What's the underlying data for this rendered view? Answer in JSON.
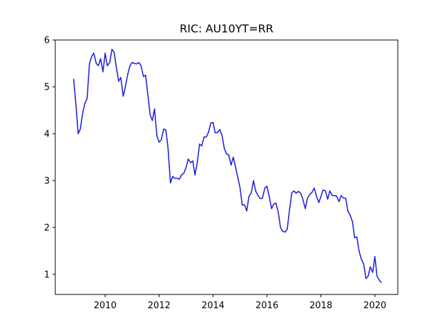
{
  "chart_data": {
    "type": "line",
    "title": "RIC: AU10YT=RR",
    "xlabel": "",
    "ylabel": "",
    "xlim": [
      2008.15,
      2020.85
    ],
    "ylim": [
      0.57,
      6.0
    ],
    "grid": false,
    "legend": "none",
    "x_ticks": [
      2010,
      2012,
      2014,
      2016,
      2018,
      2020
    ],
    "x_tick_labels": [
      "2010",
      "2012",
      "2014",
      "2016",
      "2018",
      "2020"
    ],
    "y_ticks": [
      1,
      2,
      3,
      4,
      5,
      6
    ],
    "y_tick_labels": [
      "1",
      "2",
      "3",
      "4",
      "5",
      "6"
    ],
    "series": [
      {
        "color": "#2222dd",
        "x": [
          2008.83,
          2008.92,
          2009.0,
          2009.08,
          2009.17,
          2009.25,
          2009.33,
          2009.42,
          2009.5,
          2009.58,
          2009.67,
          2009.75,
          2009.83,
          2009.92,
          2010.0,
          2010.08,
          2010.17,
          2010.25,
          2010.33,
          2010.42,
          2010.5,
          2010.58,
          2010.67,
          2010.75,
          2010.83,
          2010.92,
          2011.0,
          2011.08,
          2011.17,
          2011.25,
          2011.33,
          2011.42,
          2011.5,
          2011.58,
          2011.67,
          2011.75,
          2011.83,
          2011.92,
          2012.0,
          2012.08,
          2012.17,
          2012.25,
          2012.33,
          2012.42,
          2012.5,
          2012.58,
          2012.67,
          2012.75,
          2012.83,
          2012.92,
          2013.0,
          2013.08,
          2013.17,
          2013.25,
          2013.33,
          2013.42,
          2013.5,
          2013.58,
          2013.67,
          2013.75,
          2013.83,
          2013.92,
          2014.0,
          2014.08,
          2014.17,
          2014.25,
          2014.33,
          2014.42,
          2014.5,
          2014.58,
          2014.67,
          2014.75,
          2014.83,
          2014.92,
          2015.0,
          2015.08,
          2015.17,
          2015.25,
          2015.33,
          2015.42,
          2015.5,
          2015.58,
          2015.67,
          2015.75,
          2015.83,
          2015.92,
          2016.0,
          2016.08,
          2016.17,
          2016.25,
          2016.33,
          2016.42,
          2016.5,
          2016.58,
          2016.67,
          2016.75,
          2016.83,
          2016.92,
          2017.0,
          2017.08,
          2017.17,
          2017.25,
          2017.33,
          2017.42,
          2017.5,
          2017.58,
          2017.67,
          2017.75,
          2017.83,
          2017.92,
          2018.0,
          2018.08,
          2018.17,
          2018.25,
          2018.33,
          2018.42,
          2018.5,
          2018.58,
          2018.67,
          2018.75,
          2018.83,
          2018.92,
          2019.0,
          2019.08,
          2019.17,
          2019.25,
          2019.33,
          2019.42,
          2019.5,
          2019.58,
          2019.67,
          2019.75,
          2019.83,
          2019.92,
          2020.0,
          2020.08,
          2020.17,
          2020.25
        ],
        "values": [
          5.17,
          4.6,
          4.0,
          4.1,
          4.45,
          4.65,
          4.75,
          5.5,
          5.65,
          5.72,
          5.5,
          5.45,
          5.6,
          5.32,
          5.72,
          5.45,
          5.52,
          5.8,
          5.74,
          5.4,
          5.12,
          5.2,
          4.8,
          5.0,
          5.25,
          5.45,
          5.52,
          5.5,
          5.49,
          5.52,
          5.45,
          5.22,
          5.25,
          4.85,
          4.4,
          4.28,
          4.53,
          3.95,
          3.82,
          3.87,
          4.1,
          4.08,
          3.7,
          2.95,
          3.09,
          3.05,
          3.05,
          3.03,
          3.12,
          3.16,
          3.28,
          3.46,
          3.38,
          3.42,
          3.12,
          3.4,
          3.78,
          3.74,
          3.93,
          3.93,
          4.03,
          4.23,
          4.24,
          4.02,
          4.03,
          4.09,
          3.97,
          3.68,
          3.57,
          3.55,
          3.33,
          3.5,
          3.3,
          3.06,
          2.85,
          2.48,
          2.48,
          2.35,
          2.66,
          2.74,
          3.0,
          2.78,
          2.68,
          2.62,
          2.62,
          2.84,
          2.88,
          2.67,
          2.4,
          2.5,
          2.52,
          2.32,
          2.0,
          1.92,
          1.9,
          1.96,
          2.35,
          2.74,
          2.78,
          2.73,
          2.77,
          2.73,
          2.6,
          2.4,
          2.62,
          2.7,
          2.75,
          2.84,
          2.68,
          2.53,
          2.66,
          2.8,
          2.78,
          2.6,
          2.78,
          2.68,
          2.68,
          2.67,
          2.55,
          2.68,
          2.63,
          2.62,
          2.35,
          2.27,
          2.12,
          1.78,
          1.8,
          1.48,
          1.32,
          1.23,
          0.91,
          0.96,
          1.16,
          1.04,
          1.38,
          0.96,
          0.87,
          0.82
        ]
      }
    ]
  }
}
